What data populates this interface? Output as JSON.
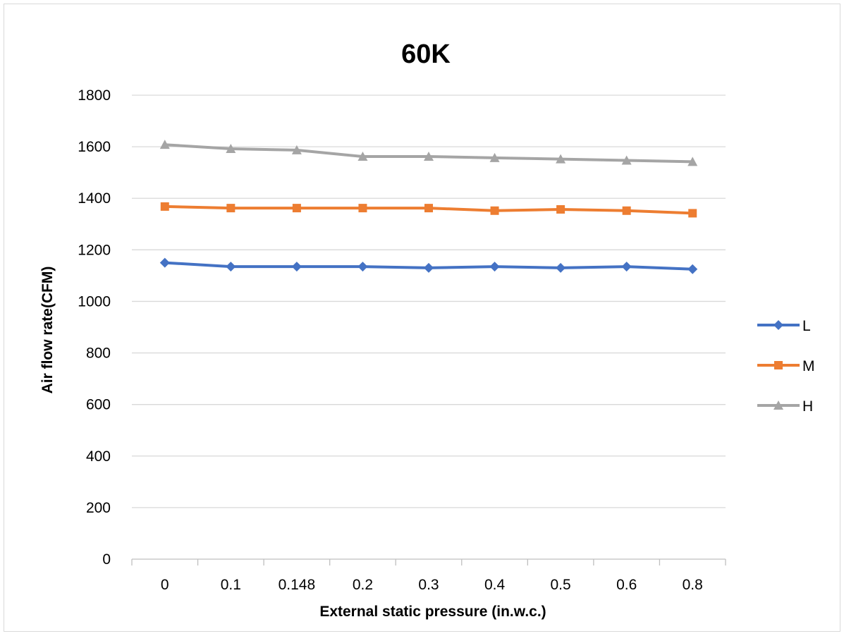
{
  "chart_data": {
    "type": "line",
    "title": "60K",
    "xlabel": "External static pressure (in.w.c.)",
    "ylabel": "Air flow rate(CFM)",
    "categories": [
      "0",
      "0.1",
      "0.148",
      "0.2",
      "0.3",
      "0.4",
      "0.5",
      "0.6",
      "0.8"
    ],
    "ylim": [
      0,
      1800
    ],
    "yticks": [
      0,
      200,
      400,
      600,
      800,
      1000,
      1200,
      1400,
      1600,
      1800
    ],
    "grid": true,
    "legend_position": "right",
    "series": [
      {
        "name": "L",
        "color": "#4472c4",
        "marker": "diamond",
        "values": [
          1150,
          1135,
          1135,
          1135,
          1130,
          1135,
          1130,
          1135,
          1125
        ]
      },
      {
        "name": "M",
        "color": "#ed7d31",
        "marker": "square",
        "values": [
          1368,
          1362,
          1362,
          1362,
          1362,
          1352,
          1357,
          1352,
          1342
        ]
      },
      {
        "name": "H",
        "color": "#a5a5a5",
        "marker": "triangle",
        "values": [
          1608,
          1592,
          1587,
          1562,
          1562,
          1557,
          1552,
          1547,
          1542
        ]
      }
    ]
  }
}
